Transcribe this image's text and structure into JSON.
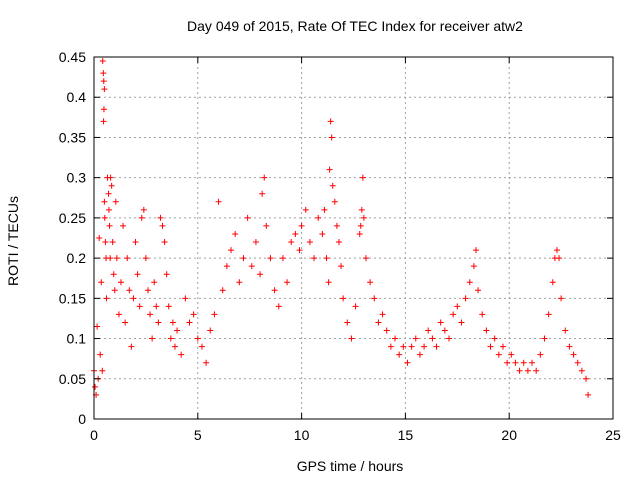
{
  "chart_data": {
    "type": "scatter",
    "title": "Day 049 of 2015, Rate Of TEC Index for receiver atw2",
    "xlabel": "GPS time / hours",
    "ylabel": "ROTI / TECUs",
    "xlim": [
      0,
      25
    ],
    "ylim": [
      0,
      0.45
    ],
    "x_ticks": [
      0,
      5,
      10,
      15,
      20,
      25
    ],
    "y_ticks": [
      0,
      0.05,
      0.1,
      0.15,
      0.2,
      0.25,
      0.3,
      0.35,
      0.4,
      0.45
    ],
    "x_tick_labels": [
      "0",
      "5",
      "10",
      "15",
      "20",
      "25"
    ],
    "y_tick_labels": [
      "0",
      "0.05",
      "0.1",
      "0.15",
      "0.2",
      "0.25",
      "0.3",
      "0.35",
      "0.4",
      "0.45"
    ],
    "grid": true,
    "marker": "plus",
    "color": "#ff0000",
    "series": [
      {
        "points": [
          [
            0.0,
            0.06
          ],
          [
            0.05,
            0.04
          ],
          [
            0.1,
            0.03
          ],
          [
            0.15,
            0.115
          ],
          [
            0.2,
            0.05
          ],
          [
            0.25,
            0.225
          ],
          [
            0.3,
            0.08
          ],
          [
            0.35,
            0.17
          ],
          [
            0.4,
            0.06
          ],
          [
            0.42,
            0.445
          ],
          [
            0.45,
            0.43
          ],
          [
            0.47,
            0.42
          ],
          [
            0.5,
            0.41
          ],
          [
            0.48,
            0.385
          ],
          [
            0.46,
            0.37
          ],
          [
            0.5,
            0.27
          ],
          [
            0.52,
            0.25
          ],
          [
            0.55,
            0.22
          ],
          [
            0.58,
            0.2
          ],
          [
            0.6,
            0.15
          ],
          [
            0.65,
            0.3
          ],
          [
            0.7,
            0.28
          ],
          [
            0.72,
            0.26
          ],
          [
            0.75,
            0.24
          ],
          [
            0.78,
            0.2
          ],
          [
            0.8,
            0.3
          ],
          [
            0.85,
            0.29
          ],
          [
            0.9,
            0.22
          ],
          [
            0.95,
            0.18
          ],
          [
            1.0,
            0.16
          ],
          [
            1.05,
            0.27
          ],
          [
            1.1,
            0.2
          ],
          [
            1.2,
            0.13
          ],
          [
            1.3,
            0.17
          ],
          [
            1.4,
            0.24
          ],
          [
            1.5,
            0.12
          ],
          [
            1.6,
            0.2
          ],
          [
            1.7,
            0.16
          ],
          [
            1.8,
            0.09
          ],
          [
            1.9,
            0.15
          ],
          [
            2.0,
            0.22
          ],
          [
            2.1,
            0.18
          ],
          [
            2.2,
            0.14
          ],
          [
            2.3,
            0.25
          ],
          [
            2.4,
            0.26
          ],
          [
            2.5,
            0.2
          ],
          [
            2.6,
            0.16
          ],
          [
            2.7,
            0.13
          ],
          [
            2.8,
            0.1
          ],
          [
            2.9,
            0.17
          ],
          [
            3.0,
            0.14
          ],
          [
            3.1,
            0.12
          ],
          [
            3.2,
            0.25
          ],
          [
            3.3,
            0.24
          ],
          [
            3.4,
            0.22
          ],
          [
            3.5,
            0.18
          ],
          [
            3.6,
            0.14
          ],
          [
            3.7,
            0.1
          ],
          [
            3.8,
            0.12
          ],
          [
            3.9,
            0.09
          ],
          [
            4.0,
            0.11
          ],
          [
            4.2,
            0.08
          ],
          [
            4.4,
            0.15
          ],
          [
            4.6,
            0.12
          ],
          [
            4.8,
            0.13
          ],
          [
            5.0,
            0.1
          ],
          [
            5.2,
            0.09
          ],
          [
            5.4,
            0.07
          ],
          [
            5.6,
            0.11
          ],
          [
            5.8,
            0.13
          ],
          [
            6.0,
            0.27
          ],
          [
            6.2,
            0.16
          ],
          [
            6.4,
            0.19
          ],
          [
            6.6,
            0.21
          ],
          [
            6.8,
            0.23
          ],
          [
            7.0,
            0.17
          ],
          [
            7.2,
            0.2
          ],
          [
            7.4,
            0.25
          ],
          [
            7.6,
            0.19
          ],
          [
            7.8,
            0.22
          ],
          [
            8.0,
            0.18
          ],
          [
            8.1,
            0.28
          ],
          [
            8.2,
            0.3
          ],
          [
            8.3,
            0.24
          ],
          [
            8.5,
            0.2
          ],
          [
            8.7,
            0.16
          ],
          [
            8.9,
            0.14
          ],
          [
            9.1,
            0.2
          ],
          [
            9.3,
            0.17
          ],
          [
            9.5,
            0.22
          ],
          [
            9.7,
            0.23
          ],
          [
            9.9,
            0.21
          ],
          [
            10.0,
            0.24
          ],
          [
            10.2,
            0.26
          ],
          [
            10.4,
            0.22
          ],
          [
            10.6,
            0.2
          ],
          [
            10.8,
            0.25
          ],
          [
            11.0,
            0.23
          ],
          [
            11.1,
            0.26
          ],
          [
            11.2,
            0.2
          ],
          [
            11.3,
            0.17
          ],
          [
            11.35,
            0.31
          ],
          [
            11.4,
            0.37
          ],
          [
            11.45,
            0.35
          ],
          [
            11.5,
            0.29
          ],
          [
            11.6,
            0.27
          ],
          [
            11.7,
            0.24
          ],
          [
            11.8,
            0.22
          ],
          [
            11.9,
            0.19
          ],
          [
            12.0,
            0.15
          ],
          [
            12.2,
            0.12
          ],
          [
            12.4,
            0.1
          ],
          [
            12.6,
            0.14
          ],
          [
            12.8,
            0.23
          ],
          [
            12.85,
            0.24
          ],
          [
            12.9,
            0.26
          ],
          [
            12.95,
            0.3
          ],
          [
            13.0,
            0.25
          ],
          [
            13.1,
            0.2
          ],
          [
            13.3,
            0.17
          ],
          [
            13.5,
            0.15
          ],
          [
            13.7,
            0.12
          ],
          [
            13.9,
            0.13
          ],
          [
            14.1,
            0.11
          ],
          [
            14.3,
            0.09
          ],
          [
            14.5,
            0.1
          ],
          [
            14.7,
            0.08
          ],
          [
            14.9,
            0.09
          ],
          [
            15.1,
            0.07
          ],
          [
            15.3,
            0.09
          ],
          [
            15.5,
            0.1
          ],
          [
            15.7,
            0.08
          ],
          [
            15.9,
            0.09
          ],
          [
            16.1,
            0.11
          ],
          [
            16.3,
            0.1
          ],
          [
            16.5,
            0.09
          ],
          [
            16.7,
            0.12
          ],
          [
            16.9,
            0.11
          ],
          [
            17.1,
            0.1
          ],
          [
            17.3,
            0.13
          ],
          [
            17.5,
            0.14
          ],
          [
            17.7,
            0.12
          ],
          [
            17.9,
            0.15
          ],
          [
            18.1,
            0.17
          ],
          [
            18.3,
            0.19
          ],
          [
            18.4,
            0.21
          ],
          [
            18.5,
            0.16
          ],
          [
            18.7,
            0.13
          ],
          [
            18.9,
            0.11
          ],
          [
            19.1,
            0.09
          ],
          [
            19.3,
            0.1
          ],
          [
            19.5,
            0.08
          ],
          [
            19.7,
            0.09
          ],
          [
            19.9,
            0.07
          ],
          [
            20.1,
            0.08
          ],
          [
            20.3,
            0.07
          ],
          [
            20.5,
            0.06
          ],
          [
            20.7,
            0.07
          ],
          [
            20.9,
            0.06
          ],
          [
            21.1,
            0.07
          ],
          [
            21.3,
            0.06
          ],
          [
            21.5,
            0.08
          ],
          [
            21.7,
            0.1
          ],
          [
            21.9,
            0.13
          ],
          [
            22.1,
            0.17
          ],
          [
            22.2,
            0.2
          ],
          [
            22.3,
            0.21
          ],
          [
            22.4,
            0.2
          ],
          [
            22.5,
            0.15
          ],
          [
            22.7,
            0.11
          ],
          [
            22.9,
            0.09
          ],
          [
            23.1,
            0.08
          ],
          [
            23.3,
            0.07
          ],
          [
            23.5,
            0.06
          ],
          [
            23.7,
            0.05
          ],
          [
            23.8,
            0.03
          ]
        ]
      }
    ]
  }
}
